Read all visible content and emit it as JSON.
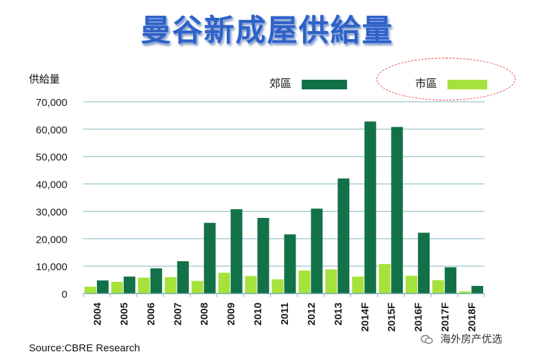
{
  "page": {
    "title": "曼谷新成屋供給量",
    "source": "Source:CBRE Research",
    "brand": "海外房产优选"
  },
  "chart_data": {
    "type": "bar",
    "title": "曼谷新成屋供給量",
    "ylabel": "供給量",
    "xlabel": "",
    "ylim": [
      0,
      70000
    ],
    "yticks": [
      0,
      10000,
      20000,
      30000,
      40000,
      50000,
      60000,
      70000
    ],
    "ytick_labels": [
      "0",
      "10,000",
      "20,000",
      "30,000",
      "40,000",
      "50,000",
      "60,000",
      "70,000"
    ],
    "grid": true,
    "legend_position": "top-right",
    "categories": [
      "2004",
      "2005",
      "2006",
      "2007",
      "2008",
      "2009",
      "2010",
      "2011",
      "2012",
      "2013",
      "2014F",
      "2015F",
      "2016F",
      "2017F",
      "2018F"
    ],
    "series": [
      {
        "name": "市區",
        "color": "#a6e23c",
        "values": [
          2500,
          4300,
          5800,
          6000,
          4600,
          7600,
          6400,
          5200,
          8400,
          8800,
          6200,
          10800,
          6500,
          4900,
          800
        ]
      },
      {
        "name": "郊區",
        "color": "#137148",
        "values": [
          4800,
          6200,
          9200,
          11800,
          25800,
          30800,
          27600,
          21600,
          31000,
          42000,
          62800,
          60800,
          22200,
          9600,
          2800
        ]
      }
    ]
  }
}
